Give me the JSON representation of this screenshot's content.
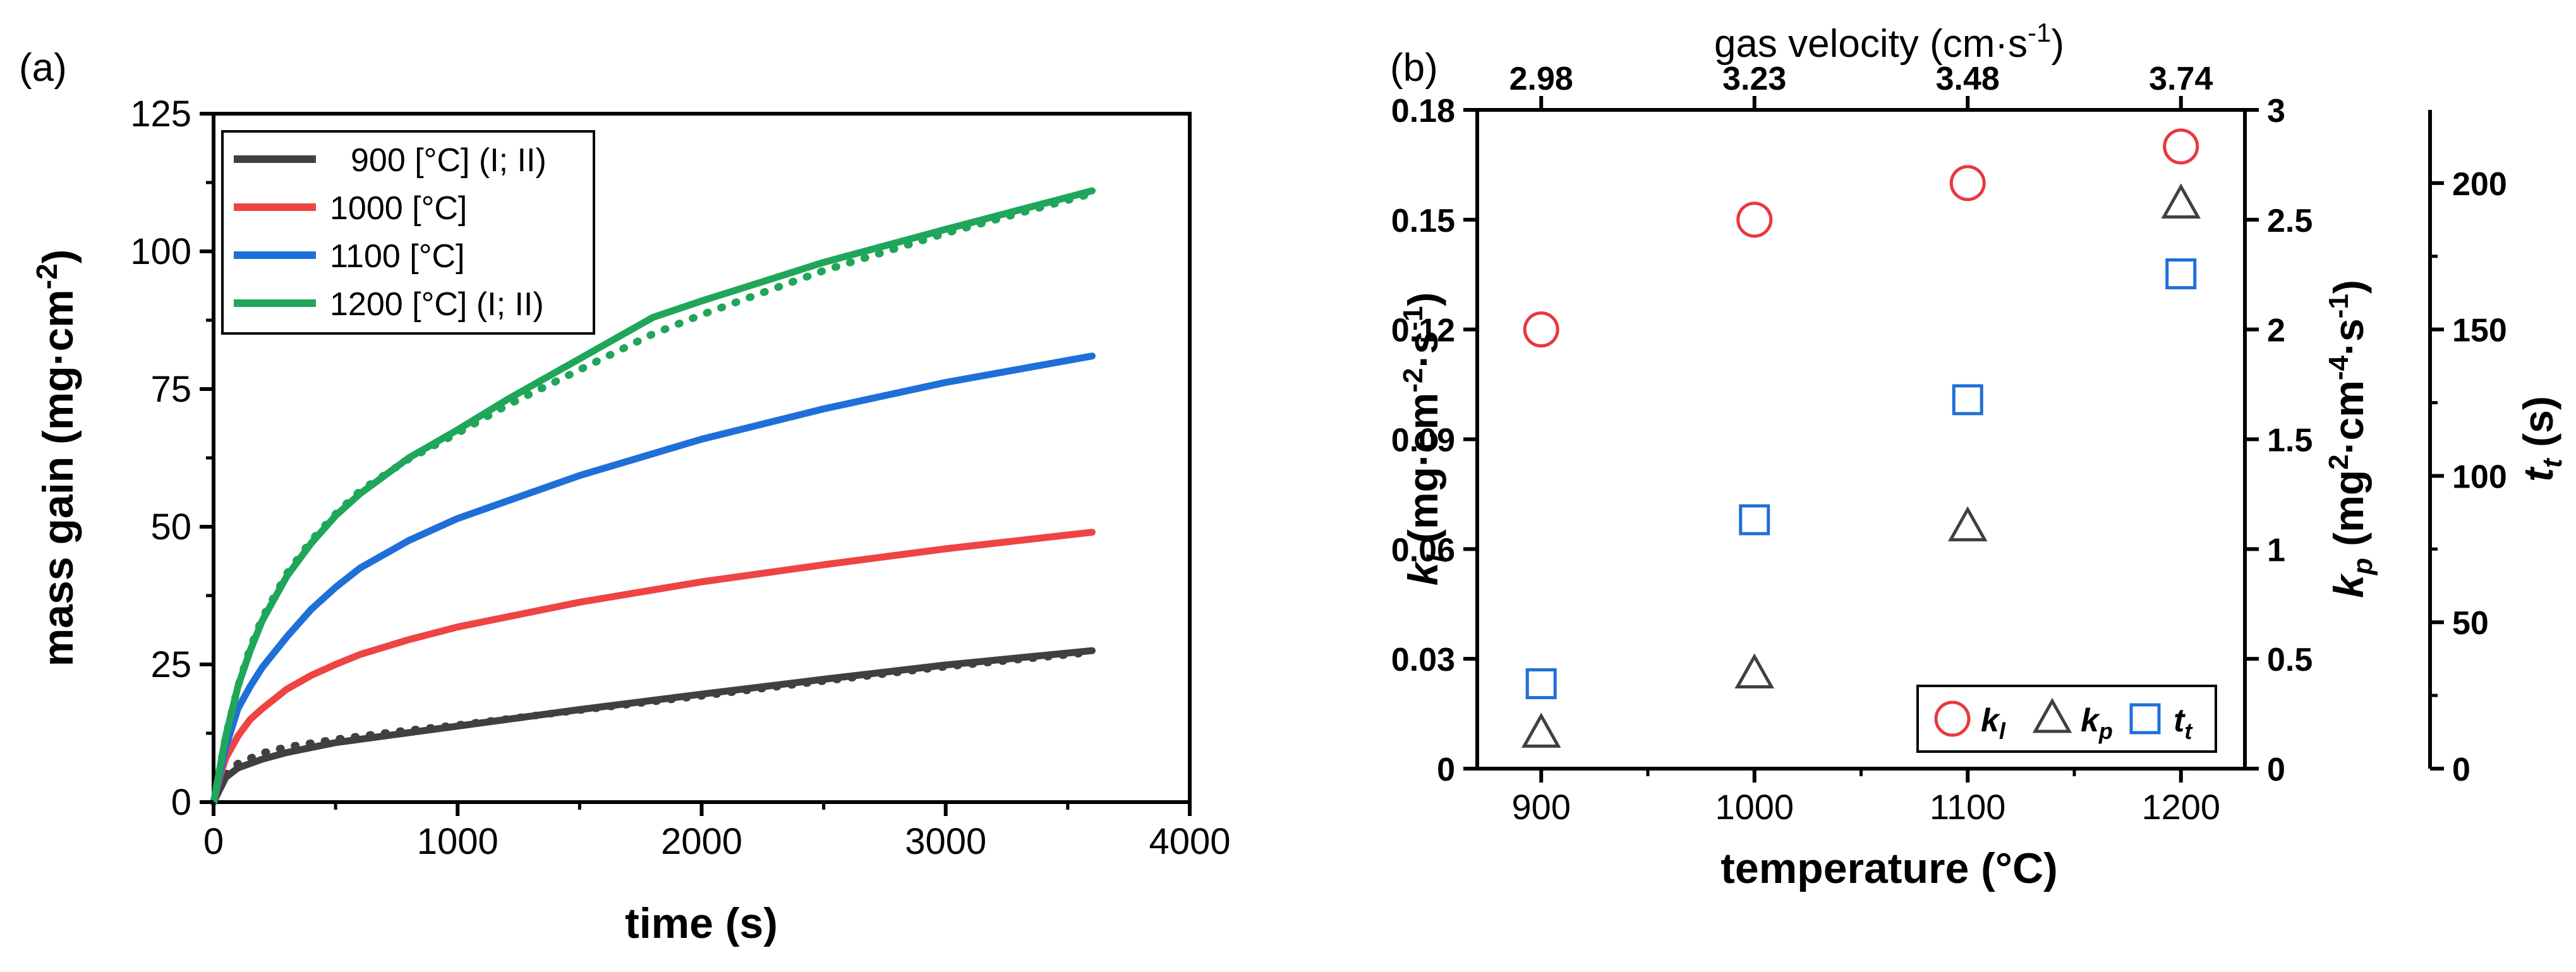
{
  "chart_data": [
    {
      "panel": "(a)",
      "type": "line",
      "xlabel": "time (s)",
      "ylabel_main": "mass gain (mg·cm",
      "ylabel_sup": "-2",
      "ylabel_tail": ")",
      "xlim": [
        0,
        4000
      ],
      "ylim": [
        0,
        125
      ],
      "xticks": [
        "0",
        "1000",
        "2000",
        "3000",
        "4000"
      ],
      "yticks": [
        "0",
        "25",
        "50",
        "75",
        "100",
        "125"
      ],
      "legend_position": "top-left",
      "series": [
        {
          "name": "900 [°C] (I; II)",
          "color": "#404040",
          "style": "solid",
          "x": [
            0,
            50,
            100,
            200,
            300,
            500,
            750,
            1000,
            1500,
            2000,
            2500,
            3000,
            3600
          ],
          "y": [
            0,
            4.5,
            6.2,
            7.8,
            9,
            10.8,
            12.3,
            13.8,
            16.8,
            19.6,
            22.3,
            24.9,
            27.5
          ]
        },
        {
          "name": "900 [°C] (I; II) dotted",
          "color": "#404040",
          "style": "dotted",
          "x": [
            0,
            50,
            100,
            200,
            300,
            500,
            750,
            1000,
            1500,
            2000,
            2500,
            3000,
            3600
          ],
          "y": [
            0,
            5,
            7,
            8.9,
            10,
            11.4,
            12.8,
            14,
            16.7,
            19.3,
            22,
            24.6,
            27.2
          ]
        },
        {
          "name": "1000 [°C]",
          "color": "#ee4444",
          "style": "solid",
          "x": [
            0,
            25,
            50,
            100,
            150,
            200,
            300,
            400,
            500,
            600,
            800,
            1000,
            1500,
            2000,
            2500,
            3000,
            3600
          ],
          "y": [
            0,
            4.5,
            8,
            12,
            15,
            17,
            20.5,
            23,
            25,
            26.8,
            29.5,
            31.8,
            36.3,
            40,
            43.1,
            46,
            49
          ]
        },
        {
          "name": "1100 [°C]",
          "color": "#1f6fd8",
          "style": "solid",
          "x": [
            0,
            25,
            50,
            100,
            150,
            200,
            300,
            400,
            500,
            600,
            800,
            1000,
            1500,
            2000,
            2500,
            3000,
            3600
          ],
          "y": [
            0,
            5,
            10,
            17,
            21,
            24.5,
            30,
            35,
            39,
            42.5,
            47.5,
            51.5,
            59.3,
            65.9,
            71.4,
            76.2,
            81
          ]
        },
        {
          "name": "1200 [°C] (I; II)",
          "color": "#1fa65a",
          "style": "solid",
          "x": [
            0,
            25,
            50,
            100,
            150,
            200,
            300,
            400,
            500,
            600,
            800,
            1000,
            1200,
            1500,
            1800,
            2000,
            2500,
            3000,
            3600
          ],
          "y": [
            0,
            6,
            12,
            21,
            27.5,
            33,
            41,
            47,
            52,
            56,
            62.5,
            67.6,
            73,
            80.5,
            88,
            91,
            98,
            104,
            111
          ]
        },
        {
          "name": "1200 [°C] (I; II) dotted",
          "color": "#1fa65a",
          "style": "dotted",
          "x": [
            0,
            25,
            50,
            100,
            150,
            200,
            300,
            400,
            500,
            600,
            800,
            1000,
            1200,
            1500,
            1800,
            2000,
            2500,
            3000,
            3600
          ],
          "y": [
            0,
            6,
            12,
            21,
            28,
            33.5,
            41.5,
            47.5,
            52.3,
            56.5,
            62.3,
            67,
            72,
            78.5,
            85,
            88.5,
            96.5,
            103.3,
            110.5
          ]
        }
      ],
      "legend": [
        {
          "label": "900 [°C] (I; II)",
          "color": "#404040"
        },
        {
          "label": "1000 [°C]",
          "color": "#ee4444"
        },
        {
          "label": "1100 [°C]",
          "color": "#1f6fd8"
        },
        {
          "label": "1200 [°C] (I; II)",
          "color": "#1fa65a"
        }
      ]
    },
    {
      "panel": "(b)",
      "type": "scatter",
      "xlabel": "temperature (°C)",
      "top_axis_label_main": "gas velocity (cm·s",
      "top_axis_label_sup": "-1",
      "top_axis_label_tail": ")",
      "xlim": [
        870,
        1230
      ],
      "xticks": [
        "900",
        "1000",
        "1100",
        "1200"
      ],
      "top_ticks": [
        "2.98",
        "3.23",
        "3.48",
        "3.74"
      ],
      "left_axis": {
        "label_k": "k",
        "label_sub": "l",
        "label_rest": " (mg·cm",
        "label_sup": "-2",
        "label_rest2": "·s",
        "label_sup2": "-1",
        "label_tail": ")",
        "ylim": [
          0,
          0.18
        ],
        "ticks": [
          "0",
          "0.03",
          "0.06",
          "0.09",
          "0.12",
          "0.15",
          "0.18"
        ]
      },
      "right_axis_1": {
        "label_k": "k",
        "label_sub": "p",
        "label_rest": " (mg",
        "label_sup": "2",
        "label_rest2": "·cm",
        "label_sup2": "-4",
        "label_rest3": "·s",
        "label_sup3": "-1",
        "label_tail": ")",
        "ylim": [
          0,
          3
        ],
        "ticks": [
          "0",
          "0.5",
          "1",
          "1.5",
          "2",
          "2.5",
          "3"
        ]
      },
      "right_axis_2": {
        "label_k": "t",
        "label_sub": "t",
        "label_tail": " (s)",
        "ylim": [
          0,
          225
        ],
        "ticks": [
          "0",
          "50",
          "100",
          "150",
          "200"
        ]
      },
      "x": [
        900,
        1000,
        1100,
        1200
      ],
      "series": [
        {
          "name": "k_l",
          "axis": "left",
          "marker": "circle",
          "color": "#e8383d",
          "values": [
            0.12,
            0.15,
            0.16,
            0.17
          ]
        },
        {
          "name": "k_p",
          "axis": "right1",
          "marker": "triangle",
          "color": "#404040",
          "values": [
            0.16,
            0.43,
            1.1,
            2.57
          ]
        },
        {
          "name": "t_t",
          "axis": "right2",
          "marker": "square",
          "color": "#1f6fd8",
          "values": [
            29,
            85,
            126,
            169
          ]
        }
      ],
      "legend_position": "bottom-right",
      "legend": [
        {
          "base": "k",
          "sub": "l"
        },
        {
          "base": "k",
          "sub": "p"
        },
        {
          "base": "t",
          "sub": "t"
        }
      ]
    }
  ]
}
